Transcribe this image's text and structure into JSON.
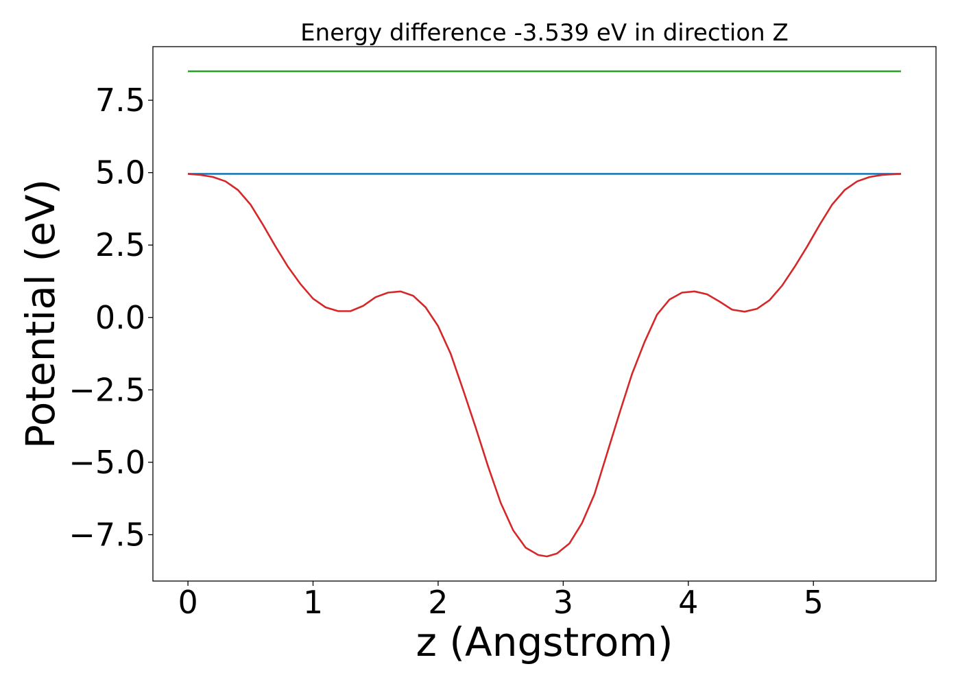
{
  "chart_data": {
    "type": "line",
    "title": "Energy difference -3.539 eV in direction Z",
    "xlabel": "z (Angstrom)",
    "ylabel": "Potential (eV)",
    "xlim": [
      -0.28,
      5.98
    ],
    "ylim": [
      -9.1,
      9.35
    ],
    "xticks": [
      0,
      1,
      2,
      3,
      4,
      5
    ],
    "xtick_labels": [
      "0",
      "1",
      "2",
      "3",
      "4",
      "5"
    ],
    "yticks": [
      7.5,
      5.0,
      2.5,
      0.0,
      -2.5,
      -5.0,
      -7.5
    ],
    "ytick_labels": [
      "7.5",
      "5.0",
      "2.5",
      "0.0",
      "−2.5",
      "−5.0",
      "−7.5"
    ],
    "grid": false,
    "series": [
      {
        "color": "#2ca02c",
        "x": [
          0,
          5.7
        ],
        "y": [
          8.5,
          8.5
        ]
      },
      {
        "color": "#1f77b4",
        "x": [
          0,
          5.7
        ],
        "y": [
          4.96,
          4.96
        ]
      },
      {
        "color": "#d62728",
        "x": [
          0,
          0.1,
          0.2,
          0.3,
          0.4,
          0.5,
          0.6,
          0.7,
          0.8,
          0.9,
          1.0,
          1.1,
          1.2,
          1.3,
          1.4,
          1.5,
          1.6,
          1.7,
          1.8,
          1.9,
          2.0,
          2.1,
          2.2,
          2.3,
          2.4,
          2.5,
          2.6,
          2.7,
          2.8,
          2.87,
          2.95,
          3.05,
          3.15,
          3.25,
          3.35,
          3.45,
          3.55,
          3.65,
          3.75,
          3.85,
          3.95,
          4.05,
          4.15,
          4.25,
          4.35,
          4.45,
          4.55,
          4.65,
          4.75,
          4.85,
          4.95,
          5.05,
          5.15,
          5.25,
          5.35,
          5.45,
          5.55,
          5.65,
          5.7
        ],
        "y": [
          4.96,
          4.92,
          4.85,
          4.7,
          4.4,
          3.9,
          3.2,
          2.45,
          1.75,
          1.15,
          0.65,
          0.35,
          0.22,
          0.22,
          0.4,
          0.7,
          0.86,
          0.9,
          0.75,
          0.35,
          -0.3,
          -1.25,
          -2.5,
          -3.8,
          -5.15,
          -6.4,
          -7.35,
          -7.95,
          -8.2,
          -8.25,
          -8.15,
          -7.8,
          -7.1,
          -6.1,
          -4.7,
          -3.3,
          -1.95,
          -0.85,
          0.1,
          0.62,
          0.86,
          0.9,
          0.8,
          0.55,
          0.27,
          0.2,
          0.3,
          0.6,
          1.1,
          1.75,
          2.45,
          3.2,
          3.9,
          4.4,
          4.7,
          4.85,
          4.92,
          4.95,
          4.96
        ]
      }
    ]
  }
}
